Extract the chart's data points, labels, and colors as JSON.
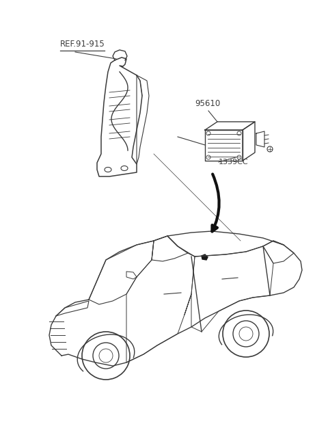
{
  "bg_color": "#ffffff",
  "line_color": "#3a3a3a",
  "text_color": "#3d3d3d",
  "label_ref": "REF.91-915",
  "label_part": "95610",
  "label_cc": "1339CC",
  "fig_width": 4.8,
  "fig_height": 6.55,
  "dpi": 100
}
